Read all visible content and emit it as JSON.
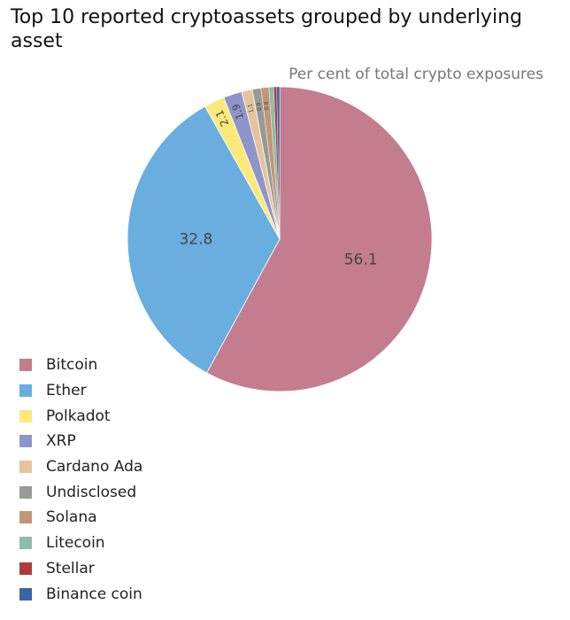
{
  "chart_data": {
    "type": "pie",
    "title": "Top 10 reported cryptoassets grouped by underlying asset",
    "subtitle": "Per cent of total crypto exposures",
    "legend_position": "bottom-left",
    "slices": [
      {
        "label": "Bitcoin",
        "value": 56.1,
        "value_label": "56.1",
        "color": "#c47d8e"
      },
      {
        "label": "Ether",
        "value": 32.8,
        "value_label": "32.8",
        "color": "#6aaee0"
      },
      {
        "label": "Polkadot",
        "value": 2.1,
        "value_label": "2.1",
        "color": "#fbe97a"
      },
      {
        "label": "XRP",
        "value": 1.9,
        "value_label": "1.9",
        "color": "#8e95cb"
      },
      {
        "label": "Cardano Ada",
        "value": 1.1,
        "value_label": "1.1",
        "color": "#e5c39b"
      },
      {
        "label": "Undisclosed",
        "value": 0.9,
        "value_label": "0.9",
        "color": "#979b98"
      },
      {
        "label": "Solana",
        "value": 0.8,
        "value_label": "0.8",
        "color": "#c49576"
      },
      {
        "label": "Litecoin",
        "value": 0.5,
        "value_label": "",
        "color": "#8cbda8"
      },
      {
        "label": "Stellar",
        "value": 0.3,
        "value_label": "",
        "color": "#b03a3c"
      },
      {
        "label": "Binance coin",
        "value": 0.3,
        "value_label": "",
        "color": "#3a66a8"
      }
    ]
  }
}
